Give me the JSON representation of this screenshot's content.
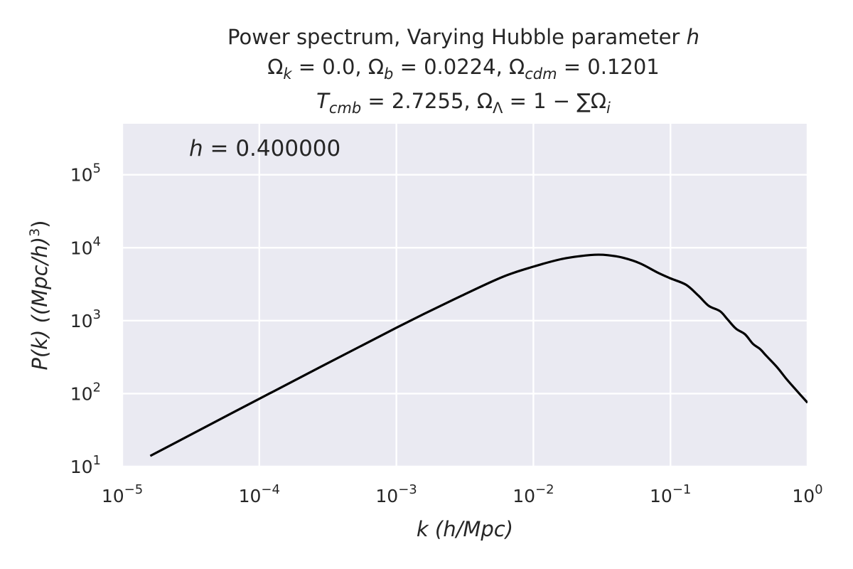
{
  "chart_data": {
    "type": "line",
    "title_lines": [
      "Power spectrum,  Varying Hubble parameter h",
      "Ωk = 0.0, Ωb = 0.0224, Ωcdm = 0.1201",
      "Tcmb = 2.7255, ΩΛ = 1 − ∑Ωi"
    ],
    "xlabel": "k  (h/Mpc)",
    "ylabel": "P(k)  ((Mpc/h)^3)",
    "annotation": "h = 0.400000",
    "x_scale": "log",
    "y_scale": "log",
    "xlim": [
      1e-05,
      1
    ],
    "ylim": [
      10,
      500000
    ],
    "x_ticks": [
      {
        "exp": "−5",
        "value": 1e-05
      },
      {
        "exp": "−4",
        "value": 0.0001
      },
      {
        "exp": "−3",
        "value": 0.001
      },
      {
        "exp": "−2",
        "value": 0.01
      },
      {
        "exp": "−1",
        "value": 0.1
      },
      {
        "exp": "0",
        "value": 1
      }
    ],
    "y_ticks": [
      {
        "exp": "1",
        "value": 10
      },
      {
        "exp": "2",
        "value": 100
      },
      {
        "exp": "3",
        "value": 1000
      },
      {
        "exp": "4",
        "value": 10000
      },
      {
        "exp": "5",
        "value": 100000
      }
    ],
    "grid": true,
    "background_color": "#eaeaf2",
    "grid_color": "#ffffff",
    "line_color": "#000000",
    "series": [
      {
        "x": [
          1.6e-05,
          0.0001,
          0.001,
          0.003,
          0.006,
          0.01,
          0.015,
          0.02,
          0.028,
          0.035,
          0.045,
          0.06,
          0.08,
          0.1,
          0.13,
          0.16,
          0.19,
          0.23,
          0.26,
          0.3,
          0.35,
          0.4,
          0.45,
          0.5,
          0.6,
          0.7,
          0.8,
          1.0
        ],
        "y": [
          14,
          85,
          800,
          2200,
          4000,
          5500,
          6800,
          7500,
          8000,
          7900,
          7300,
          6100,
          4600,
          3800,
          3100,
          2200,
          1600,
          1350,
          1050,
          780,
          650,
          480,
          410,
          330,
          230,
          160,
          120,
          75
        ]
      }
    ]
  }
}
